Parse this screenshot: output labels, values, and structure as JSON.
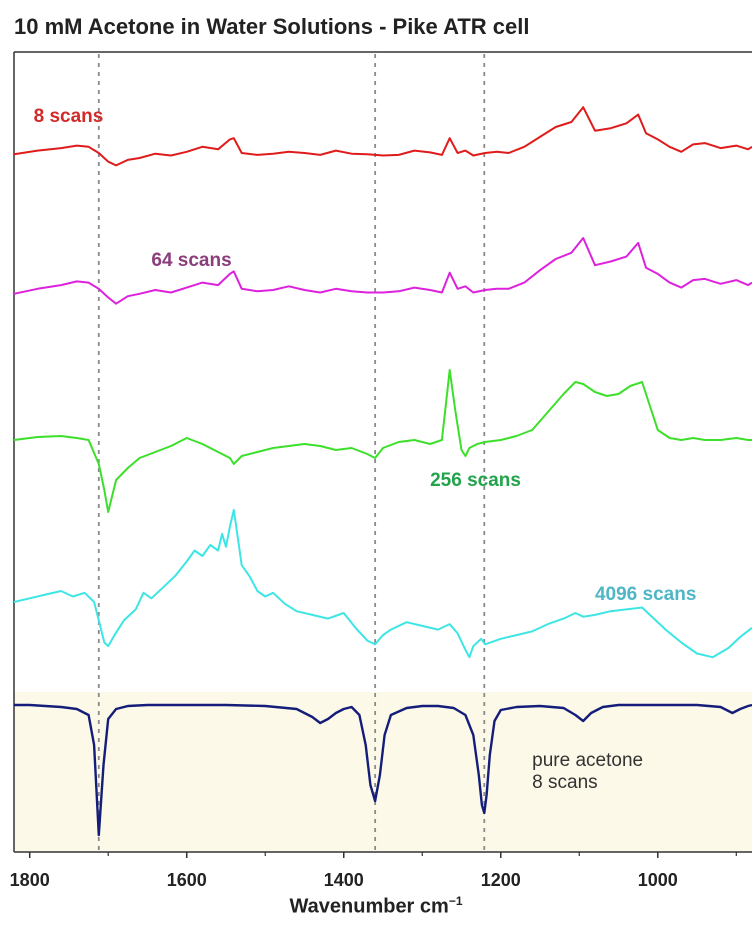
{
  "chart_data": {
    "type": "line",
    "title": "10 mM Acetone in Water Solutions - Pike ATR cell",
    "xlabel": "Wavenumber cm",
    "xlabel_exp": "−1",
    "ylabel": "",
    "xlim": [
      1820,
      880
    ],
    "x_reversed": true,
    "xticks": [
      1800,
      1600,
      1400,
      1200,
      1000
    ],
    "reference_lines_x": [
      1712,
      1360,
      1221
    ],
    "grid": false,
    "legend": "none (inline labels)",
    "colors": {
      "scans8": "#e01b1b",
      "scans64": "#dd22dd",
      "scans256": "#3ce02a",
      "scans4096": "#3ee5e5",
      "pure": "#141e7a",
      "pure_background": "#fcf9e8"
    },
    "series": [
      {
        "name": "8 scans",
        "label_color": "#d22a2a",
        "x": [
          1820,
          1790,
          1760,
          1740,
          1725,
          1712,
          1700,
          1690,
          1675,
          1660,
          1640,
          1620,
          1600,
          1580,
          1560,
          1545,
          1540,
          1530,
          1510,
          1490,
          1470,
          1450,
          1430,
          1410,
          1390,
          1370,
          1350,
          1330,
          1310,
          1290,
          1275,
          1265,
          1255,
          1245,
          1235,
          1220,
          1205,
          1190,
          1170,
          1150,
          1130,
          1110,
          1095,
          1080,
          1060,
          1040,
          1025,
          1015,
          1000,
          985,
          970,
          955,
          940,
          920,
          900,
          885,
          880
        ],
        "y": [
          6,
          12,
          16,
          20,
          18,
          8,
          -6,
          -12,
          -3,
          0,
          7,
          4,
          10,
          18,
          14,
          30,
          32,
          8,
          5,
          7,
          10,
          8,
          5,
          12,
          7,
          6,
          4,
          5,
          12,
          9,
          5,
          32,
          8,
          12,
          4,
          8,
          10,
          8,
          18,
          34,
          50,
          58,
          82,
          44,
          48,
          56,
          70,
          40,
          30,
          18,
          10,
          22,
          24,
          16,
          20,
          14,
          18
        ]
      },
      {
        "name": "64 scans",
        "label_color": "#8a3e7c",
        "x": [
          1820,
          1790,
          1760,
          1740,
          1725,
          1712,
          1700,
          1690,
          1675,
          1660,
          1640,
          1620,
          1600,
          1580,
          1560,
          1545,
          1540,
          1530,
          1510,
          1490,
          1470,
          1450,
          1430,
          1410,
          1390,
          1370,
          1350,
          1330,
          1310,
          1290,
          1275,
          1265,
          1255,
          1245,
          1235,
          1220,
          1205,
          1190,
          1170,
          1150,
          1130,
          1110,
          1095,
          1080,
          1060,
          1040,
          1025,
          1015,
          1000,
          985,
          970,
          955,
          940,
          920,
          900,
          885,
          880
        ],
        "y": [
          2,
          10,
          16,
          22,
          20,
          10,
          -4,
          -14,
          -2,
          2,
          8,
          4,
          12,
          20,
          16,
          34,
          38,
          10,
          6,
          8,
          14,
          8,
          4,
          10,
          6,
          4,
          4,
          6,
          12,
          8,
          4,
          36,
          10,
          14,
          4,
          8,
          10,
          10,
          20,
          40,
          58,
          68,
          92,
          48,
          54,
          62,
          84,
          44,
          34,
          20,
          12,
          24,
          26,
          18,
          24,
          16,
          20
        ]
      },
      {
        "name": "256 scans",
        "label_color": "#21a44c",
        "x": [
          1820,
          1790,
          1760,
          1740,
          1725,
          1712,
          1705,
          1700,
          1690,
          1675,
          1660,
          1640,
          1620,
          1600,
          1580,
          1560,
          1545,
          1540,
          1530,
          1510,
          1490,
          1470,
          1450,
          1430,
          1410,
          1390,
          1370,
          1360,
          1350,
          1330,
          1310,
          1290,
          1275,
          1265,
          1258,
          1250,
          1245,
          1240,
          1230,
          1220,
          1200,
          1180,
          1160,
          1140,
          1120,
          1105,
          1095,
          1080,
          1065,
          1050,
          1035,
          1020,
          1010,
          1000,
          985,
          970,
          955,
          940,
          920,
          900,
          885,
          880
        ],
        "y": [
          0,
          3,
          4,
          2,
          0,
          -24,
          -50,
          -72,
          -40,
          -28,
          -18,
          -12,
          -6,
          2,
          -4,
          -12,
          -18,
          -24,
          -16,
          -12,
          -8,
          -6,
          -4,
          -6,
          -10,
          -8,
          -14,
          -18,
          -8,
          -2,
          0,
          -4,
          0,
          70,
          30,
          -10,
          -16,
          -8,
          -4,
          -2,
          0,
          4,
          10,
          28,
          46,
          58,
          56,
          48,
          44,
          46,
          54,
          58,
          34,
          10,
          2,
          0,
          2,
          0,
          0,
          2,
          0,
          0
        ]
      },
      {
        "name": "4096 scans",
        "label_color": "#4fb6c5",
        "x": [
          1820,
          1800,
          1780,
          1760,
          1745,
          1730,
          1718,
          1712,
          1705,
          1700,
          1692,
          1680,
          1665,
          1655,
          1645,
          1630,
          1615,
          1600,
          1590,
          1580,
          1570,
          1560,
          1555,
          1550,
          1545,
          1540,
          1535,
          1530,
          1520,
          1510,
          1500,
          1490,
          1475,
          1460,
          1440,
          1420,
          1400,
          1385,
          1370,
          1360,
          1350,
          1340,
          1320,
          1300,
          1280,
          1265,
          1255,
          1245,
          1240,
          1235,
          1225,
          1220,
          1200,
          1180,
          1160,
          1140,
          1120,
          1105,
          1095,
          1080,
          1060,
          1040,
          1020,
          1010,
          990,
          970,
          950,
          930,
          910,
          895,
          880
        ],
        "y": [
          0,
          4,
          8,
          12,
          6,
          10,
          0,
          -20,
          -44,
          -48,
          -36,
          -20,
          -8,
          10,
          4,
          16,
          28,
          44,
          56,
          50,
          62,
          56,
          74,
          60,
          82,
          100,
          70,
          40,
          28,
          12,
          6,
          10,
          -2,
          -10,
          -14,
          -18,
          -12,
          -28,
          -42,
          -46,
          -36,
          -30,
          -22,
          -26,
          -30,
          -24,
          -34,
          -52,
          -60,
          -48,
          -40,
          -46,
          -40,
          -36,
          -32,
          -24,
          -18,
          -12,
          -16,
          -14,
          -10,
          -8,
          -6,
          -14,
          -30,
          -44,
          -56,
          -60,
          -50,
          -38,
          -28
        ]
      },
      {
        "name": "pure acetone 8 scans",
        "label_color": "#333333",
        "x": [
          1820,
          1800,
          1780,
          1760,
          1740,
          1725,
          1718,
          1712,
          1706,
          1700,
          1690,
          1675,
          1650,
          1600,
          1550,
          1500,
          1460,
          1440,
          1430,
          1420,
          1410,
          1400,
          1390,
          1380,
          1372,
          1366,
          1360,
          1354,
          1348,
          1340,
          1320,
          1300,
          1280,
          1260,
          1245,
          1235,
          1228,
          1224,
          1221,
          1218,
          1214,
          1208,
          1200,
          1180,
          1150,
          1120,
          1105,
          1095,
          1085,
          1070,
          1050,
          1000,
          950,
          920,
          905,
          895,
          885,
          880
        ],
        "y": [
          0,
          0,
          -1,
          -2,
          -4,
          -10,
          -40,
          -130,
          -60,
          -14,
          -4,
          -1,
          0,
          0,
          0,
          -1,
          -4,
          -12,
          -18,
          -14,
          -8,
          -4,
          -2,
          -10,
          -40,
          -80,
          -96,
          -70,
          -30,
          -10,
          -3,
          -1,
          -1,
          -3,
          -10,
          -30,
          -70,
          -100,
          -108,
          -90,
          -50,
          -16,
          -5,
          -2,
          -1,
          -3,
          -10,
          -16,
          -8,
          -2,
          0,
          0,
          0,
          -2,
          -8,
          -4,
          -1,
          0
        ]
      }
    ]
  }
}
